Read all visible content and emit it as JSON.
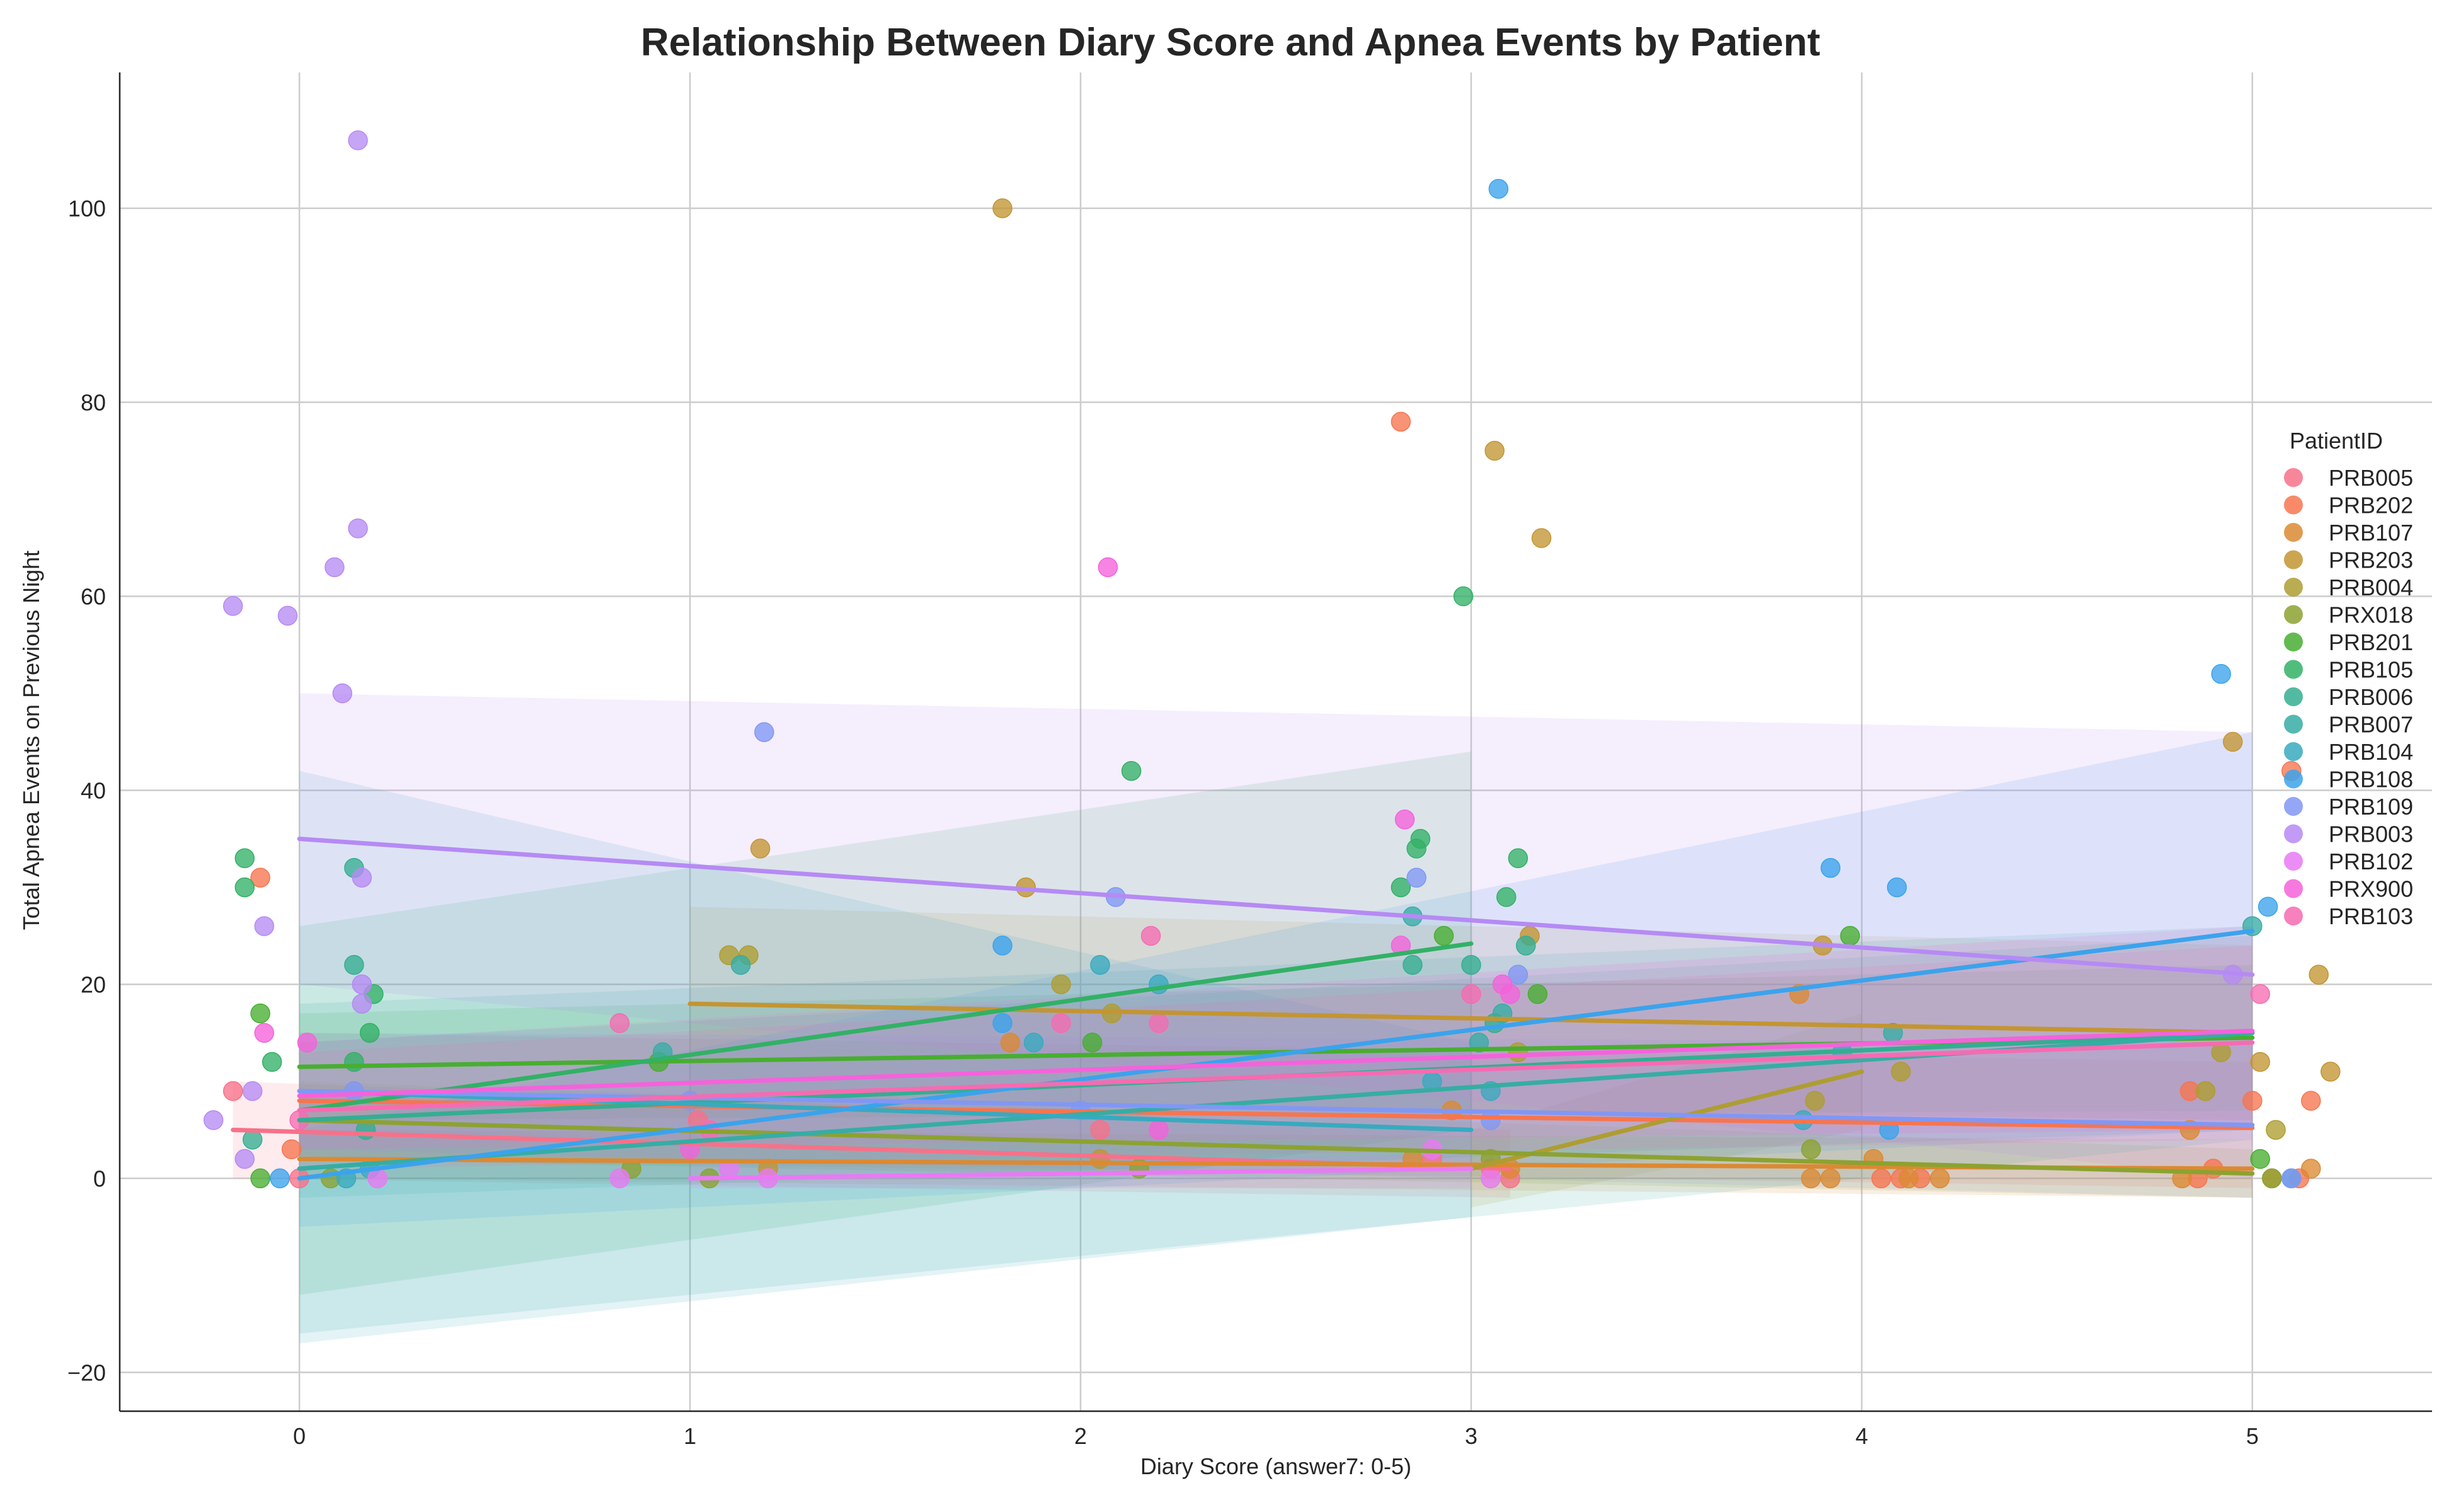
{
  "chart_data": {
    "type": "scatter",
    "title": "Relationship Between Diary Score and Apnea Events by Patient",
    "xlabel": "Diary Score (answer7: 0-5)",
    "ylabel": "Total Apnea Events on Previous Night",
    "xlim": [
      -0.46,
      5.46
    ],
    "ylim": [
      -24,
      114
    ],
    "xticks": [
      0,
      1,
      2,
      3,
      4,
      5
    ],
    "yticks": [
      -20,
      0,
      20,
      40,
      60,
      80,
      100
    ],
    "xtick_labels": [
      "0",
      "1",
      "2",
      "3",
      "4",
      "5"
    ],
    "ytick_labels": [
      "−20",
      "0",
      "20",
      "40",
      "60",
      "80",
      "100"
    ],
    "grid": true,
    "legend": {
      "title": "PatientID",
      "placement": "center-right"
    },
    "series": [
      {
        "name": "PRB005",
        "color": "#f77189",
        "points": [
          [
            -0.17,
            9
          ],
          [
            0,
            0
          ],
          [
            1.02,
            6
          ],
          [
            2.05,
            5
          ],
          [
            2.9,
            2
          ],
          [
            3.05,
            1
          ],
          [
            3.1,
            0
          ]
        ],
        "fit": {
          "x": [
            -0.17,
            3.1
          ],
          "y": [
            5,
            1
          ]
        },
        "band": {
          "x": [
            -0.17,
            3.1
          ],
          "lower": [
            0,
            -2
          ],
          "upper": [
            10,
            5
          ]
        }
      },
      {
        "name": "PRB202",
        "color": "#f7754f",
        "points": [
          [
            -0.1,
            31
          ],
          [
            -0.02,
            3
          ],
          [
            2.82,
            78
          ],
          [
            4.05,
            0
          ],
          [
            4.1,
            0
          ],
          [
            4.15,
            0
          ],
          [
            4.84,
            9
          ],
          [
            4.86,
            0
          ],
          [
            4.9,
            1
          ],
          [
            5,
            8
          ],
          [
            5.1,
            42
          ],
          [
            5.12,
            0
          ],
          [
            5.15,
            8
          ]
        ],
        "fit": {
          "x": [
            0,
            5
          ],
          "y": [
            8,
            5.2
          ]
        },
        "band": {
          "x": [
            0,
            5
          ],
          "lower": [
            2,
            -1
          ],
          "upper": [
            15,
            12
          ]
        }
      },
      {
        "name": "PRB107",
        "color": "#dc8932",
        "points": [
          [
            1.82,
            14
          ],
          [
            2.85,
            2
          ],
          [
            2.95,
            7
          ],
          [
            3.1,
            1
          ],
          [
            3.84,
            19
          ],
          [
            3.87,
            0
          ],
          [
            3.92,
            0
          ],
          [
            4.03,
            2
          ],
          [
            4.12,
            0
          ],
          [
            4.2,
            0
          ],
          [
            4.82,
            0
          ],
          [
            4.84,
            5
          ],
          [
            5.05,
            0
          ],
          [
            5.15,
            1
          ]
        ],
        "fit": {
          "x": [
            0,
            5
          ],
          "y": [
            2,
            1
          ]
        },
        "band": {
          "x": [
            0,
            5
          ],
          "lower": [
            0,
            -2
          ],
          "upper": [
            5,
            4
          ]
        }
      },
      {
        "name": "PRB203",
        "color": "#c39532",
        "points": [
          [
            1.8,
            100
          ],
          [
            1.18,
            34
          ],
          [
            1.86,
            30
          ],
          [
            3.06,
            75
          ],
          [
            3.18,
            66
          ],
          [
            3.15,
            25
          ],
          [
            3.9,
            24
          ],
          [
            4.95,
            45
          ],
          [
            5.2,
            11
          ],
          [
            5.17,
            21
          ],
          [
            5.02,
            12
          ],
          [
            1.2,
            1
          ],
          [
            2.05,
            2
          ]
        ],
        "fit": {
          "x": [
            1,
            5
          ],
          "y": [
            18,
            15
          ]
        },
        "band": {
          "x": [
            1,
            5
          ],
          "lower": [
            8,
            6
          ],
          "upper": [
            28,
            24
          ]
        }
      },
      {
        "name": "PRB004",
        "color": "#ae9d31",
        "points": [
          [
            1.1,
            23
          ],
          [
            1.15,
            23
          ],
          [
            1.95,
            20
          ],
          [
            2.08,
            17
          ],
          [
            3.12,
            13
          ],
          [
            3.88,
            8
          ],
          [
            4.1,
            11
          ],
          [
            4.88,
            9
          ],
          [
            5.06,
            5
          ],
          [
            4.92,
            13
          ]
        ],
        "fit": {
          "x": [
            3,
            4
          ],
          "y": [
            1,
            11
          ]
        },
        "band": {
          "x": [
            3,
            4
          ],
          "lower": [
            -3,
            5
          ],
          "upper": [
            5,
            17
          ]
        }
      },
      {
        "name": "PRX018",
        "color": "#8ca231",
        "points": [
          [
            0.08,
            0
          ],
          [
            0.85,
            1
          ],
          [
            1.05,
            0
          ],
          [
            2.15,
            1
          ],
          [
            3.05,
            2
          ],
          [
            3.87,
            3
          ],
          [
            5.05,
            0
          ]
        ],
        "fit": {
          "x": [
            0,
            5
          ],
          "y": [
            6,
            0.5
          ]
        },
        "band": {
          "x": [
            0,
            5
          ],
          "lower": [
            2,
            -2
          ],
          "upper": [
            10,
            3
          ]
        }
      },
      {
        "name": "PRB201",
        "color": "#48ae31",
        "points": [
          [
            -0.1,
            17
          ],
          [
            -0.1,
            0
          ],
          [
            0.92,
            12
          ],
          [
            2.03,
            14
          ],
          [
            2.93,
            25
          ],
          [
            3.17,
            19
          ],
          [
            3.97,
            25
          ],
          [
            5.02,
            2
          ]
        ],
        "fit": {
          "x": [
            0,
            5
          ],
          "y": [
            11.5,
            14.5
          ]
        },
        "band": {
          "x": [
            0,
            5
          ],
          "lower": [
            6,
            7
          ],
          "upper": [
            17,
            22
          ]
        }
      },
      {
        "name": "PRB105",
        "color": "#32b166",
        "points": [
          [
            -0.14,
            33
          ],
          [
            -0.14,
            30
          ],
          [
            -0.07,
            12
          ],
          [
            0.14,
            12
          ],
          [
            0.18,
            15
          ],
          [
            0.19,
            19
          ],
          [
            2.13,
            42
          ],
          [
            2.82,
            30
          ],
          [
            2.98,
            60
          ],
          [
            3.12,
            33
          ],
          [
            3.09,
            29
          ],
          [
            2.87,
            35
          ],
          [
            2.86,
            34
          ]
        ],
        "fit": {
          "x": [
            0,
            3
          ],
          "y": [
            7,
            24.2
          ]
        },
        "band": {
          "x": [
            0,
            3
          ],
          "lower": [
            -12,
            5
          ],
          "upper": [
            26,
            44
          ]
        }
      },
      {
        "name": "PRB006",
        "color": "#34ae91",
        "points": [
          [
            -0.12,
            4
          ],
          [
            0.14,
            32
          ],
          [
            0.14,
            22
          ],
          [
            0.17,
            5
          ],
          [
            2.85,
            22
          ],
          [
            3.0,
            22
          ],
          [
            3.06,
            16
          ],
          [
            3.14,
            24
          ]
        ],
        "fit": {
          "x": [
            0,
            5
          ],
          "y": [
            6,
            15
          ]
        },
        "band": {
          "x": [
            0,
            5
          ],
          "lower": [
            -2,
            5
          ],
          "upper": [
            14,
            25
          ]
        }
      },
      {
        "name": "PRB007",
        "color": "#36ada4",
        "points": [
          [
            0.93,
            13
          ],
          [
            1.13,
            22
          ],
          [
            2.85,
            27
          ],
          [
            3.08,
            17
          ],
          [
            3.02,
            14
          ],
          [
            4.08,
            15
          ],
          [
            5.0,
            26
          ]
        ],
        "fit": {
          "x": [
            0,
            5
          ],
          "y": [
            1,
            15
          ]
        },
        "band": {
          "x": [
            0,
            5
          ],
          "lower": [
            -16,
            4
          ],
          "upper": [
            18,
            26
          ]
        }
      },
      {
        "name": "PRB104",
        "color": "#38aabf",
        "points": [
          [
            0.12,
            0
          ],
          [
            0.18,
            1
          ],
          [
            1.88,
            14
          ],
          [
            2.05,
            22
          ],
          [
            2.2,
            20
          ],
          [
            2.9,
            10
          ],
          [
            3.05,
            9
          ],
          [
            3.85,
            6
          ],
          [
            3.95,
            13
          ],
          [
            5.1,
            0
          ]
        ],
        "fit": {
          "x": [
            0,
            3
          ],
          "y": [
            9,
            5
          ]
        },
        "band": {
          "x": [
            0,
            3
          ],
          "lower": [
            -17,
            -4
          ],
          "upper": [
            42,
            14
          ]
        }
      },
      {
        "name": "PRB108",
        "color": "#3ba3ec",
        "points": [
          [
            -0.05,
            0
          ],
          [
            1.8,
            24
          ],
          [
            1.8,
            16
          ],
          [
            3.07,
            102
          ],
          [
            3.92,
            32
          ],
          [
            4.09,
            30
          ],
          [
            4.92,
            52
          ],
          [
            5.04,
            28
          ],
          [
            4.07,
            5
          ]
        ],
        "fit": {
          "x": [
            0,
            5
          ],
          "y": [
            0,
            25.5
          ]
        },
        "band": {
          "x": [
            0,
            5
          ],
          "lower": [
            -5,
            5
          ],
          "upper": [
            5,
            46
          ]
        }
      },
      {
        "name": "PRB109",
        "color": "#8197f4",
        "points": [
          [
            1.19,
            46
          ],
          [
            2.09,
            29
          ],
          [
            2.86,
            31
          ],
          [
            3.12,
            21
          ],
          [
            0.14,
            9
          ],
          [
            1.0,
            8
          ],
          [
            2.0,
            7
          ],
          [
            3.05,
            6
          ],
          [
            5.1,
            0
          ]
        ],
        "fit": {
          "x": [
            0,
            5
          ],
          "y": [
            9,
            5.5
          ]
        },
        "band": {
          "x": [
            0,
            5
          ],
          "lower": [
            3,
            -2
          ],
          "upper": [
            15,
            14
          ]
        }
      },
      {
        "name": "PRB003",
        "color": "#b68af4",
        "points": [
          [
            0.15,
            107
          ],
          [
            0.15,
            67
          ],
          [
            0.09,
            63
          ],
          [
            -0.17,
            59
          ],
          [
            -0.03,
            58
          ],
          [
            0.11,
            50
          ],
          [
            -0.09,
            26
          ],
          [
            0.16,
            31
          ],
          [
            0.16,
            20
          ],
          [
            0.16,
            18
          ],
          [
            -0.22,
            6
          ],
          [
            -0.12,
            9
          ],
          [
            -0.14,
            2
          ],
          [
            4.95,
            21
          ]
        ],
        "fit": {
          "x": [
            0,
            5
          ],
          "y": [
            35,
            21
          ]
        },
        "band": {
          "x": [
            0,
            5
          ],
          "lower": [
            20,
            0
          ],
          "upper": [
            50,
            46
          ]
        }
      },
      {
        "name": "PRB102",
        "color": "#e979f4",
        "points": [
          [
            0.82,
            0
          ],
          [
            1.2,
            0
          ],
          [
            2.9,
            3
          ],
          [
            3.05,
            0
          ],
          [
            0.2,
            0
          ],
          [
            1.1,
            1
          ]
        ],
        "fit": {
          "x": [
            1,
            3
          ],
          "y": [
            0,
            1
          ]
        },
        "band": {
          "x": [
            1,
            3
          ],
          "lower": [
            -1,
            -1
          ],
          "upper": [
            1.5,
            2.5
          ]
        }
      },
      {
        "name": "PRX900",
        "color": "#f562db",
        "points": [
          [
            -0.09,
            15
          ],
          [
            0.02,
            14
          ],
          [
            2.07,
            63
          ],
          [
            2.83,
            37
          ],
          [
            2.82,
            24
          ],
          [
            3.08,
            20
          ],
          [
            3.1,
            19
          ],
          [
            2.2,
            5
          ],
          [
            1.0,
            3
          ]
        ],
        "fit": {
          "x": [
            0,
            5
          ],
          "y": [
            8.5,
            15.2
          ]
        },
        "band": {
          "x": [
            0,
            5
          ],
          "lower": [
            3,
            5
          ],
          "upper": [
            14,
            26
          ]
        }
      },
      {
        "name": "PRB103",
        "color": "#f66bb2",
        "points": [
          [
            0.82,
            16
          ],
          [
            1.95,
            16
          ],
          [
            2.18,
            25
          ],
          [
            2.2,
            16
          ],
          [
            5.02,
            19
          ],
          [
            3.0,
            19
          ],
          [
            1.05,
            5
          ],
          [
            0,
            6
          ]
        ],
        "fit": {
          "x": [
            0,
            5
          ],
          "y": [
            7,
            14
          ]
        },
        "band": {
          "x": [
            0,
            5
          ],
          "lower": [
            1,
            4
          ],
          "upper": [
            13,
            24
          ]
        }
      }
    ]
  }
}
